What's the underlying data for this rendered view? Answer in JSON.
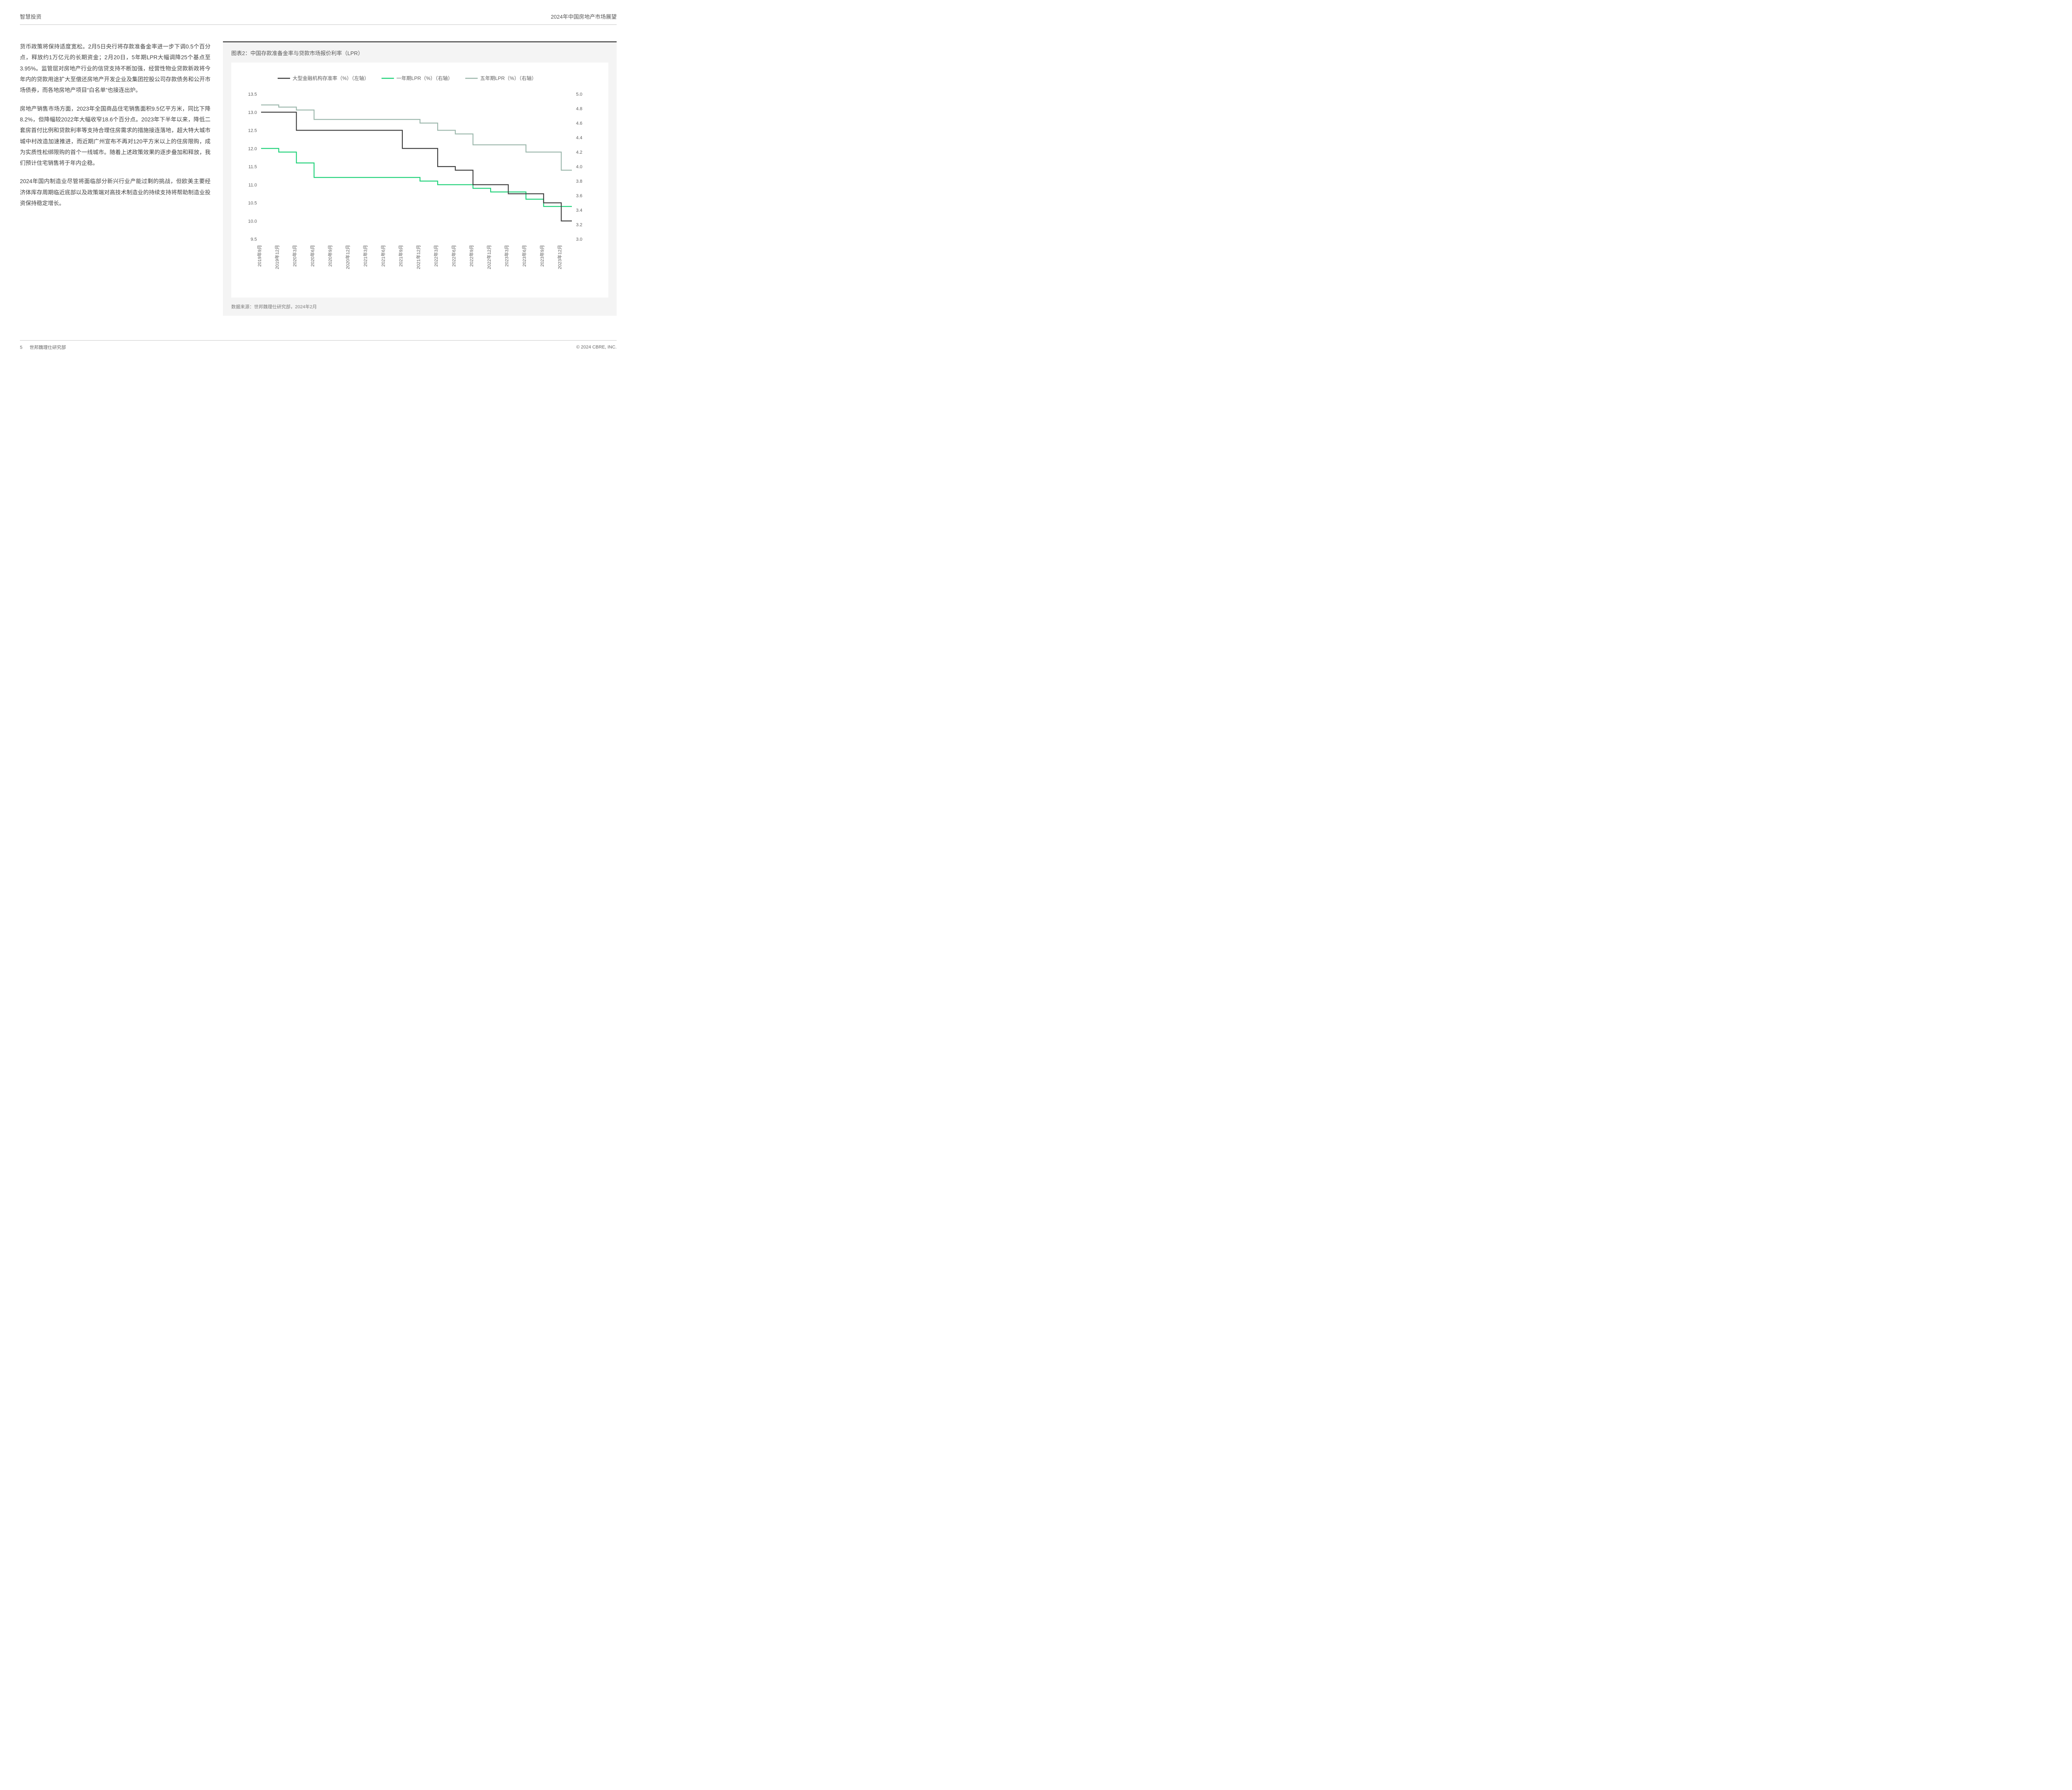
{
  "header": {
    "left": "智慧投资",
    "right": "2024年中国房地产市场展望"
  },
  "body": {
    "p1": "货币政策将保持适度宽松。2月5日央行将存款准备金率进一步下调0.5个百分点，释放约1万亿元的长期资金；2月20日，5年期LPR大幅调降25个基点至3.95%。监管层对房地产行业的信贷支持不断加强，经营性物业贷款新政将今年内的贷款用途扩大至偿还房地产开发企业及集团控股公司存款债务和公开市场债券，而各地房地产项目“白名单”也接连出炉。",
    "p2": "房地产销售市场方面，2023年全国商品住宅销售面积9.5亿平方米，同比下降8.2%，但降幅较2022年大幅收窄18.6个百分点。2023年下半年以来，降低二套房首付比例和贷款利率等支持合理住房需求的措施接连落地，超大特大城市城中村改造加速推进，而近期广州宣布不再对120平方米以上的住房限购，成为实质性松绑限购的首个一线城市。随着上述政策效果的逐步叠加和释放，我们预计住宅销售将于年内企稳。",
    "p3": "2024年国内制造业尽管将面临部分新兴行业产能过剩的挑战，但欧美主要经济体库存周期临近底部以及政策端对高技术制造业的持续支持将帮助制造业投资保持稳定增长。"
  },
  "chart": {
    "title": "图表2：中国存款准备金率与贷款市场报价利率（LPR）",
    "source": "数据来源：世邦魏理仕研究部，2024年2月",
    "type": "line-step-dual-axis",
    "background_color": "#ffffff",
    "panel_color": "#f4f4f4",
    "grid_color": "#dddddd",
    "label_fontsize": 11,
    "axis_fontsize": 11,
    "legend_fontsize": 12,
    "legend": [
      {
        "label": "大型金融机构存准率（%）（左轴）",
        "color": "#3d3d3d"
      },
      {
        "label": "一年期LPR（%）（右轴）",
        "color": "#1ed178"
      },
      {
        "label": "五年期LPR（%）（右轴）",
        "color": "#9cb7ac"
      }
    ],
    "xLabels": [
      "2019年9月",
      "2019年12月",
      "2020年3月",
      "2020年6月",
      "2020年9月",
      "2020年12月",
      "2021年3月",
      "2021年6月",
      "2021年9月",
      "2021年12月",
      "2022年3月",
      "2022年6月",
      "2022年9月",
      "2022年12月",
      "2023年3月",
      "2023年6月",
      "2023年9月",
      "2023年12月"
    ],
    "leftAxis": {
      "min": 9.5,
      "max": 13.5,
      "step": 0.5,
      "ticks": [
        "9.5",
        "10.0",
        "10.5",
        "11.0",
        "11.5",
        "12.0",
        "12.5",
        "13.0",
        "13.5"
      ]
    },
    "rightAxis": {
      "min": 3.0,
      "max": 5.0,
      "step": 0.2,
      "ticks": [
        "3.0",
        "3.2",
        "3.4",
        "3.6",
        "3.8",
        "4.0",
        "4.2",
        "4.4",
        "4.6",
        "4.8",
        "5.0"
      ]
    },
    "series": {
      "rrr": {
        "axis": "left",
        "color": "#3d3d3d",
        "line_width": 2.2,
        "points": [
          [
            0,
            13.0
          ],
          [
            2,
            13.0
          ],
          [
            2,
            12.5
          ],
          [
            8,
            12.5
          ],
          [
            8,
            12.0
          ],
          [
            10,
            12.0
          ],
          [
            10,
            11.5
          ],
          [
            11,
            11.5
          ],
          [
            11,
            11.4
          ],
          [
            12,
            11.4
          ],
          [
            12,
            11.0
          ],
          [
            14,
            11.0
          ],
          [
            14,
            10.75
          ],
          [
            16,
            10.75
          ],
          [
            16,
            10.5
          ],
          [
            17,
            10.5
          ],
          [
            17,
            10.0
          ],
          [
            17.6,
            10.0
          ]
        ]
      },
      "lpr1y": {
        "axis": "right",
        "color": "#1ed178",
        "line_width": 2.2,
        "points": [
          [
            0,
            4.25
          ],
          [
            1,
            4.25
          ],
          [
            1,
            4.2
          ],
          [
            2,
            4.2
          ],
          [
            2,
            4.05
          ],
          [
            3,
            4.05
          ],
          [
            3,
            3.85
          ],
          [
            9,
            3.85
          ],
          [
            9,
            3.8
          ],
          [
            10,
            3.8
          ],
          [
            10,
            3.75
          ],
          [
            12,
            3.75
          ],
          [
            12,
            3.7
          ],
          [
            13,
            3.7
          ],
          [
            13,
            3.65
          ],
          [
            15,
            3.65
          ],
          [
            15,
            3.55
          ],
          [
            16,
            3.55
          ],
          [
            16,
            3.45
          ],
          [
            17.6,
            3.45
          ]
        ]
      },
      "lpr5y": {
        "axis": "right",
        "color": "#9cb7ac",
        "line_width": 2.2,
        "points": [
          [
            0,
            4.85
          ],
          [
            1,
            4.85
          ],
          [
            1,
            4.82
          ],
          [
            2,
            4.82
          ],
          [
            2,
            4.78
          ],
          [
            3,
            4.78
          ],
          [
            3,
            4.65
          ],
          [
            9,
            4.65
          ],
          [
            9,
            4.6
          ],
          [
            10,
            4.6
          ],
          [
            10,
            4.5
          ],
          [
            11,
            4.5
          ],
          [
            11,
            4.45
          ],
          [
            12,
            4.45
          ],
          [
            12,
            4.3
          ],
          [
            15,
            4.3
          ],
          [
            15,
            4.2
          ],
          [
            17,
            4.2
          ],
          [
            17,
            3.95
          ],
          [
            17.6,
            3.95
          ]
        ]
      }
    }
  },
  "footer": {
    "page": "5",
    "left": "世邦魏理仕研究部",
    "right": "© 2024 CBRE, INC."
  }
}
